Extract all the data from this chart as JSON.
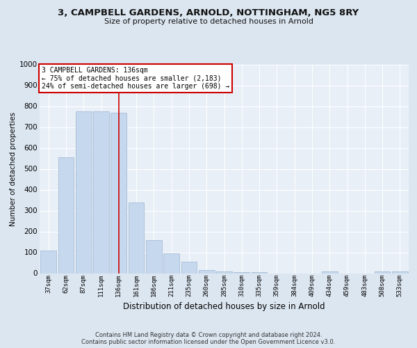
{
  "title1": "3, CAMPBELL GARDENS, ARNOLD, NOTTINGHAM, NG5 8RY",
  "title2": "Size of property relative to detached houses in Arnold",
  "xlabel": "Distribution of detached houses by size in Arnold",
  "ylabel": "Number of detached properties",
  "categories": [
    "37sqm",
    "62sqm",
    "87sqm",
    "111sqm",
    "136sqm",
    "161sqm",
    "186sqm",
    "211sqm",
    "235sqm",
    "260sqm",
    "285sqm",
    "310sqm",
    "335sqm",
    "359sqm",
    "384sqm",
    "409sqm",
    "434sqm",
    "459sqm",
    "483sqm",
    "508sqm",
    "533sqm"
  ],
  "values": [
    110,
    555,
    775,
    775,
    770,
    340,
    160,
    95,
    55,
    15,
    10,
    5,
    5,
    0,
    0,
    0,
    10,
    0,
    0,
    10,
    10
  ],
  "bar_color": "#c6d8ed",
  "bar_edge_color": "#9ab5d0",
  "vline_x_idx": 4,
  "vline_color": "#cc0000",
  "annotation_line1": "3 CAMPBELL GARDENS: 136sqm",
  "annotation_line2": "← 75% of detached houses are smaller (2,183)",
  "annotation_line3": "24% of semi-detached houses are larger (698) →",
  "annotation_box_facecolor": "#ffffff",
  "annotation_box_edgecolor": "#cc0000",
  "ylim": [
    0,
    1000
  ],
  "yticks": [
    0,
    100,
    200,
    300,
    400,
    500,
    600,
    700,
    800,
    900,
    1000
  ],
  "footer_line1": "Contains HM Land Registry data © Crown copyright and database right 2024.",
  "footer_line2": "Contains public sector information licensed under the Open Government Licence v3.0.",
  "bg_color": "#dce6f0",
  "plot_bg_color": "#e8eff7",
  "grid_color": "#ffffff",
  "title1_fontsize": 9.5,
  "title2_fontsize": 8,
  "ylabel_fontsize": 7.5,
  "xlabel_fontsize": 8.5,
  "ytick_fontsize": 7.5,
  "xtick_fontsize": 6.5,
  "footer_fontsize": 6.0,
  "annotation_fontsize": 7.0
}
